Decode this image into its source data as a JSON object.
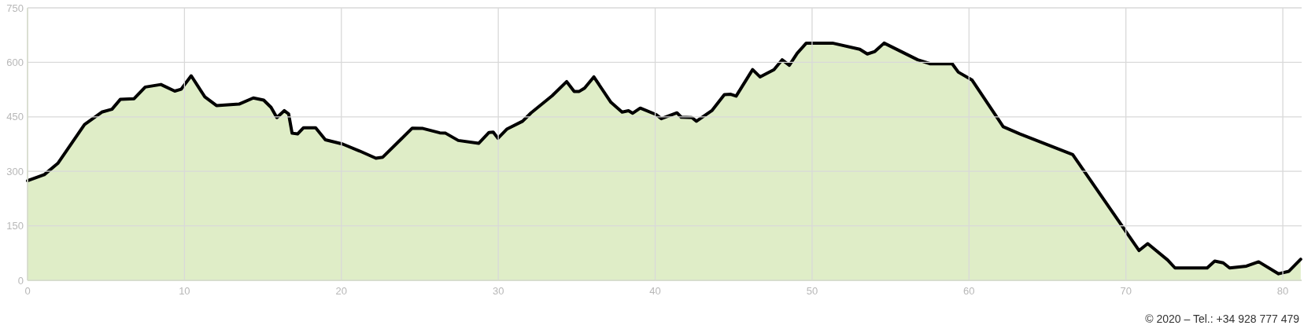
{
  "chart_data": {
    "type": "area",
    "x": [
      0,
      1.07,
      1.93,
      3.63,
      4.73,
      5.38,
      5.91,
      6.79,
      7.5,
      8.5,
      9.38,
      9.79,
      10.43,
      11.3,
      12.04,
      13.48,
      14.39,
      15.05,
      15.52,
      15.89,
      16.36,
      16.64,
      16.86,
      17.21,
      17.59,
      18.36,
      18.98,
      20.09,
      21.16,
      22.2,
      22.64,
      24.52,
      25.2,
      26.27,
      26.64,
      27.45,
      28.75,
      29.41,
      29.68,
      29.98,
      30.54,
      31.55,
      32.09,
      33.43,
      34.36,
      34.84,
      35.16,
      35.5,
      36.09,
      37.18,
      37.89,
      38.3,
      38.57,
      39.05,
      40.07,
      40.39,
      41.39,
      41.66,
      42.34,
      42.63,
      43.61,
      44.41,
      44.82,
      45.16,
      46.21,
      46.68,
      47.57,
      48.09,
      48.55,
      49.05,
      49.63,
      51.3,
      53.04,
      53.52,
      54.0,
      54.59,
      56.73,
      57.54,
      58.93,
      59.32,
      60.2,
      62.18,
      63.25,
      66.61,
      70.84,
      71.39,
      72.66,
      73.13,
      75.18,
      75.66,
      76.2,
      76.61,
      77.68,
      78.46,
      79.73,
      80.39,
      81.14
    ],
    "series": [
      {
        "color": "#000000",
        "values": [
          274,
          291,
          322,
          429,
          463,
          471,
          498,
          500,
          532,
          539,
          521,
          526,
          563,
          505,
          481,
          485,
          502,
          496,
          476,
          448,
          467,
          458,
          405,
          403,
          420,
          420,
          387,
          375,
          356,
          336,
          339,
          419,
          418,
          406,
          405,
          385,
          377,
          407,
          408,
          391,
          416,
          438,
          461,
          508,
          547,
          520,
          520,
          529,
          560,
          490,
          463,
          467,
          460,
          474,
          456,
          445,
          461,
          449,
          448,
          438,
          467,
          511,
          512,
          507,
          580,
          560,
          580,
          607,
          592,
          625,
          653,
          653,
          636,
          623,
          630,
          653,
          607,
          596,
          596,
          573,
          551,
          423,
          403,
          346,
          82,
          101,
          56,
          34,
          34,
          53,
          48,
          34,
          39,
          51,
          18,
          25,
          58
        ]
      }
    ],
    "xlim": [
      0,
      81.2
    ],
    "ylim": [
      0,
      750
    ],
    "xticks": [
      0,
      10,
      20,
      30,
      40,
      50,
      60,
      70,
      80
    ],
    "yticks": [
      0,
      150,
      300,
      450,
      600,
      750
    ],
    "grid": true,
    "marker": "none",
    "line_style": "solid",
    "annotations": [
      "© 2020 – Tel.: +34 928 777 479"
    ]
  }
}
